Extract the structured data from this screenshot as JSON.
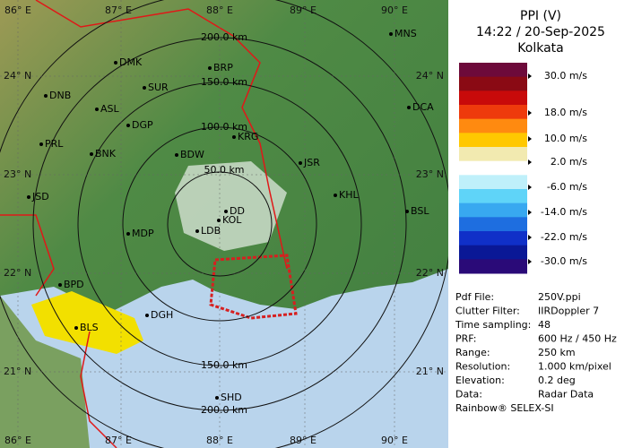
{
  "header": {
    "title": "PPI (V)",
    "time": "14:22 / 20-Sep-2025",
    "site": "Kolkata"
  },
  "legend": {
    "labels": [
      "30.0 m/s",
      "18.0 m/s",
      "10.0 m/s",
      "2.0 m/s",
      "-6.0 m/s",
      "-14.0 m/s",
      "-22.0 m/s",
      "-30.0 m/s"
    ]
  },
  "info": {
    "rows": [
      [
        "Pdf File:",
        "250V.ppi"
      ],
      [
        "Clutter Filter:",
        "IIRDoppler 7"
      ],
      [
        "Time sampling:",
        "48"
      ],
      [
        "PRF:",
        "600 Hz / 450 Hz"
      ],
      [
        "Range:",
        "250 km"
      ],
      [
        "Resolution:",
        "1.000 km/pixel"
      ],
      [
        "Elevation:",
        "0.2 deg"
      ],
      [
        "Data:",
        "Radar Data"
      ]
    ],
    "footer": "Rainbow® SELEX-SI"
  },
  "map": {
    "lon_labels": [
      "86° E",
      "87° E",
      "88° E",
      "89° E",
      "90° E"
    ],
    "lat_labels": [
      "24° N",
      "23° N",
      "22° N",
      "21° N"
    ],
    "range_labels_north": [
      "50.0 km",
      "100.0 km",
      "150.0 km",
      "200.0 km"
    ],
    "range_labels_south": [
      "150.0 km",
      "200.0 km"
    ],
    "cities": [
      "MNS",
      "DMK",
      "BRP",
      "DNB",
      "SUR",
      "DCA",
      "ASL",
      "DGP",
      "KRG",
      "PRL",
      "BNK",
      "BDW",
      "JSR",
      "KHL",
      "JSD",
      "BSL",
      "DD",
      "KOL",
      "MDP",
      "LDB",
      "BPD",
      "BLS",
      "DGH",
      "SHD"
    ]
  }
}
